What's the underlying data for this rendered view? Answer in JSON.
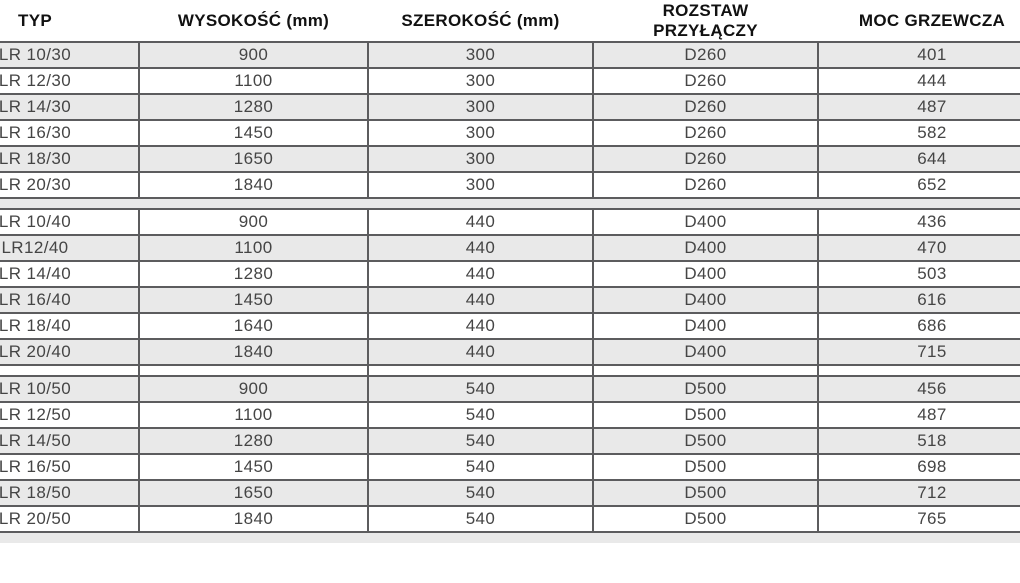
{
  "table": {
    "columns": [
      "TYP",
      "WYSOKOŚĆ (mm)",
      "SZEROKOŚĆ (mm)",
      "ROZSTAW PRZYŁĄCZY",
      "MOC GRZEWCZA"
    ],
    "column_keys": [
      "typ",
      "wysokosc",
      "szerokosc",
      "rozstaw-przylaczy",
      "moc-grzewcza"
    ],
    "groups": [
      {
        "first_row_shaded": true,
        "rows": [
          [
            "LR 10/30",
            "900",
            "300",
            "D260",
            "401"
          ],
          [
            "LR 12/30",
            "1100",
            "300",
            "D260",
            "444"
          ],
          [
            "LR 14/30",
            "1280",
            "300",
            "D260",
            "487"
          ],
          [
            "LR 16/30",
            "1450",
            "300",
            "D260",
            "582"
          ],
          [
            "LR 18/30",
            "1650",
            "300",
            "D260",
            "644"
          ],
          [
            "LR 20/30",
            "1840",
            "300",
            "D260",
            "652"
          ]
        ]
      },
      {
        "first_row_shaded": false,
        "rows": [
          [
            "LR 10/40",
            "900",
            "440",
            "D400",
            "436"
          ],
          [
            "LR12/40",
            "1100",
            "440",
            "D400",
            "470"
          ],
          [
            "LR 14/40",
            "1280",
            "440",
            "D400",
            "503"
          ],
          [
            "LR 16/40",
            "1450",
            "440",
            "D400",
            "616"
          ],
          [
            "LR 18/40",
            "1640",
            "440",
            "D400",
            "686"
          ],
          [
            "LR 20/40",
            "1840",
            "440",
            "D400",
            "715"
          ]
        ]
      },
      {
        "first_row_shaded": true,
        "rows": [
          [
            "LR 10/50",
            "900",
            "540",
            "D500",
            "456"
          ],
          [
            "LR 12/50",
            "1100",
            "540",
            "D500",
            "487"
          ],
          [
            "LR 14/50",
            "1280",
            "540",
            "D500",
            "518"
          ],
          [
            "LR 16/50",
            "1450",
            "540",
            "D500",
            "698"
          ],
          [
            "LR 18/50",
            "1650",
            "540",
            "D500",
            "712"
          ],
          [
            "LR 20/50",
            "1840",
            "540",
            "D500",
            "765"
          ]
        ]
      }
    ]
  },
  "colors": {
    "row_alt": "#e9e9e9",
    "border": "#5c5c5e",
    "cell_text": "#454545",
    "header_text": "#111111"
  }
}
